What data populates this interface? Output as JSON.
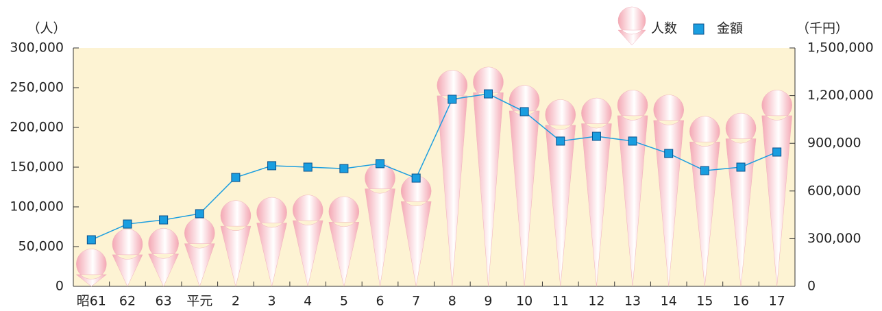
{
  "chart_data": {
    "type": "pictograph-line",
    "y_label": "（人）",
    "y2_label": "（千円）",
    "categories": [
      "昭61",
      "62",
      "63",
      "平元",
      "2",
      "3",
      "4",
      "5",
      "6",
      "7",
      "8",
      "9",
      "10",
      "11",
      "12",
      "13",
      "14",
      "15",
      "16",
      "17"
    ],
    "series": [
      {
        "name": "人数",
        "color": "#f4a8b4",
        "values": [
          47000,
          72000,
          73000,
          86000,
          108000,
          112000,
          115000,
          113000,
          155000,
          139000,
          272000,
          276000,
          253000,
          235000,
          237000,
          247000,
          241000,
          214000,
          218000,
          247000
        ]
      },
      {
        "name": "金額",
        "color": "#1a9ee0",
        "axis": "y2",
        "values": [
          293000,
          392000,
          418000,
          457000,
          685000,
          759000,
          750000,
          741000,
          772000,
          681000,
          1177000,
          1211000,
          1099000,
          914000,
          944000,
          914000,
          836000,
          728000,
          750000,
          845000
        ]
      }
    ],
    "ylim": [
      0,
      300000
    ],
    "yticks": [
      0,
      {
        "value": 50000,
        "label": "50,000"
      },
      {
        "value": 100000,
        "label": "100,000"
      },
      {
        "value": 150000,
        "label": "150,000"
      },
      {
        "value": 200000,
        "label": "200,000"
      },
      {
        "value": 250000,
        "label": "250,000"
      },
      {
        "value": 300000,
        "label": "300,000"
      }
    ],
    "y2lim": [
      0,
      1500000
    ],
    "y2ticks": [
      0,
      {
        "value": 300000,
        "label": "300,000"
      },
      {
        "value": 600000,
        "label": "600,000"
      },
      {
        "value": 900000,
        "label": "900,000"
      },
      {
        "value": 1200000,
        "label": "1,200,000"
      },
      {
        "value": 1500000,
        "label": "1,500,000"
      }
    ],
    "background": "#fdf3d3"
  }
}
